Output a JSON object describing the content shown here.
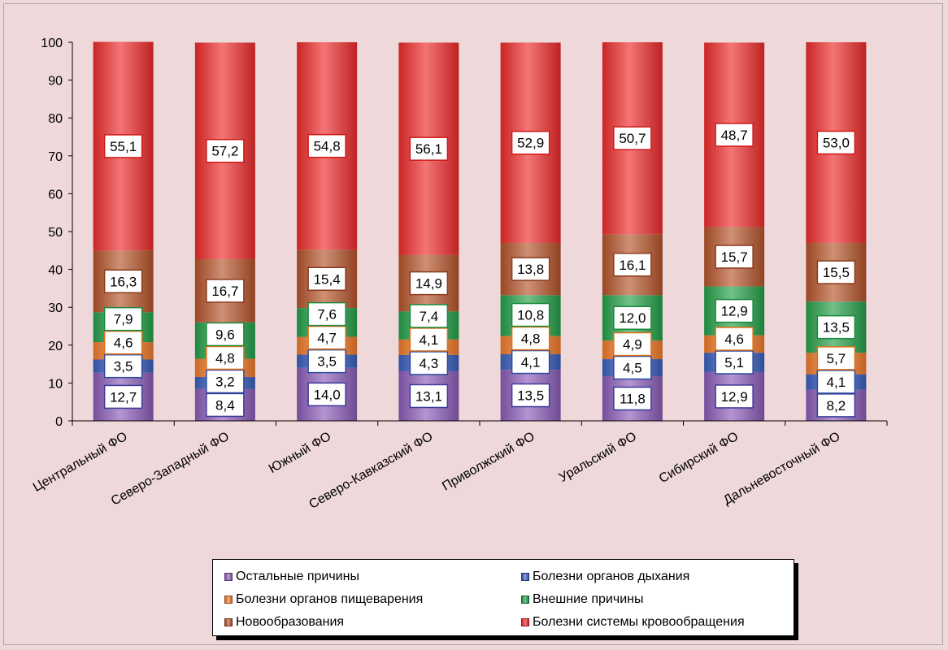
{
  "chart_data": {
    "type": "bar",
    "stacked": true,
    "categories": [
      "Центральный ФО",
      "Северо-Западный ФО",
      "Южный ФО",
      "Северо-Кавказский ФО",
      "Приволжский ФО",
      "Уральский ФО",
      "Сибирский ФО",
      "Дальневосточный ФО"
    ],
    "ylim": [
      0,
      100
    ],
    "yticks": [
      0,
      10,
      20,
      30,
      40,
      50,
      60,
      70,
      80,
      90,
      100
    ],
    "ytick_labels": [
      "0",
      "10",
      "20",
      "30",
      "40",
      "50",
      "60",
      "70",
      "80",
      "90",
      "100"
    ],
    "grid": false,
    "legend_position": "bottom",
    "series": [
      {
        "name": "Остальные причины",
        "color": "#8b5cb8",
        "values": [
          12.7,
          8.4,
          14.0,
          13.1,
          13.5,
          11.8,
          12.9,
          8.2
        ],
        "labels": [
          "12,7",
          "8,4",
          "14,0",
          "13,1",
          "13,5",
          "11,8",
          "12,9",
          "8,2"
        ]
      },
      {
        "name": "Болезни органов дыхания",
        "color": "#3a5fbd",
        "values": [
          3.5,
          3.2,
          3.5,
          4.3,
          4.1,
          4.5,
          5.1,
          4.1
        ],
        "labels": [
          "3,5",
          "3,2",
          "3,5",
          "4,3",
          "4,1",
          "4,5",
          "5,1",
          "4,1"
        ]
      },
      {
        "name": "Болезни органов пищеварения",
        "color": "#f07a2a",
        "values": [
          4.6,
          4.8,
          4.7,
          4.1,
          4.8,
          4.9,
          4.6,
          5.7
        ],
        "labels": [
          "4,6",
          "4,8",
          "4,7",
          "4,1",
          "4,8",
          "4,9",
          "4,6",
          "5,7"
        ]
      },
      {
        "name": "Внешние причины",
        "color": "#24a04a",
        "values": [
          7.9,
          9.6,
          7.6,
          7.4,
          10.8,
          12.0,
          12.9,
          13.5
        ],
        "labels": [
          "7,9",
          "9,6",
          "7,6",
          "7,4",
          "10,8",
          "12,0",
          "12,9",
          "13,5"
        ]
      },
      {
        "name": "Новообразования",
        "color": "#b5542a",
        "values": [
          16.3,
          16.7,
          15.4,
          14.9,
          13.8,
          16.1,
          15.7,
          15.5
        ],
        "labels": [
          "16,3",
          "16,7",
          "15,4",
          "14,9",
          "13,8",
          "16,1",
          "15,7",
          "15,5"
        ]
      },
      {
        "name": "Болезни системы кровообращения",
        "color": "#ee2a2a",
        "values": [
          55.1,
          57.2,
          54.8,
          56.1,
          52.9,
          50.7,
          48.7,
          53.0
        ],
        "labels": [
          "55,1",
          "57,2",
          "54,8",
          "56,1",
          "52,9",
          "50,7",
          "48,7",
          "53,0"
        ]
      }
    ],
    "label_borders": [
      "#3a3a9a",
      "#2a4aa0",
      "#e0701a",
      "#1a8a3a",
      "#8a3a1a",
      "#d01a1a"
    ]
  }
}
